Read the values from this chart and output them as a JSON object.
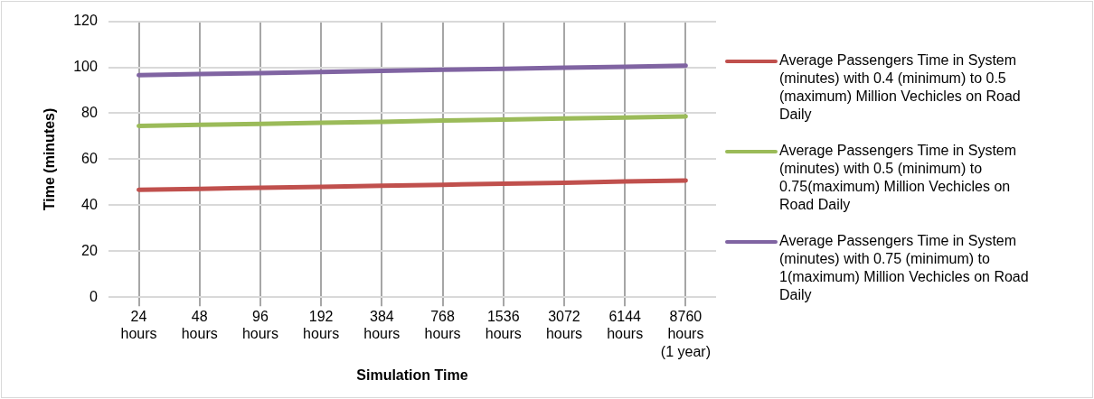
{
  "chart_data": {
    "type": "line",
    "xlabel": "Simulation Time",
    "ylabel": "Time (minutes)",
    "categories": [
      "24\nhours",
      "48\nhours",
      "96\nhours",
      "192\nhours",
      "384\nhours",
      "768\nhours",
      "1536\nhours",
      "3072\nhours",
      "6144\nhours",
      "8760\nhours\n(1 year)"
    ],
    "series": [
      {
        "name": "Average Passengers Time in System (minutes) with 0.4 (minimum) to 0.5 (maximum) Million Vechicles on Road Daily",
        "color": "#c0504d",
        "values": [
          46.7,
          47.1,
          47.6,
          48.0,
          48.5,
          48.9,
          49.4,
          49.8,
          50.3,
          50.7
        ]
      },
      {
        "name": "Average Passengers Time in System (minutes) with 0.5 (minimum) to 0.75(maximum) Million Vechicles on Road Daily",
        "color": "#9bbb59",
        "values": [
          74.5,
          75.0,
          75.4,
          75.9,
          76.3,
          76.8,
          77.2,
          77.7,
          78.1,
          78.6
        ]
      },
      {
        "name": "Average Passengers Time in System (minutes) with 0.75 (minimum) to 1(maximum) Million Vechicles on Road Daily",
        "color": "#8064a2",
        "values": [
          96.6,
          97.1,
          97.5,
          98.0,
          98.4,
          98.9,
          99.3,
          99.8,
          100.2,
          100.7
        ]
      }
    ],
    "ylim": [
      0,
      120
    ],
    "yticks": [
      0,
      20,
      40,
      60,
      80,
      100,
      120
    ],
    "grid": true,
    "legend": "right",
    "marker": "none",
    "line_style": "solid"
  }
}
